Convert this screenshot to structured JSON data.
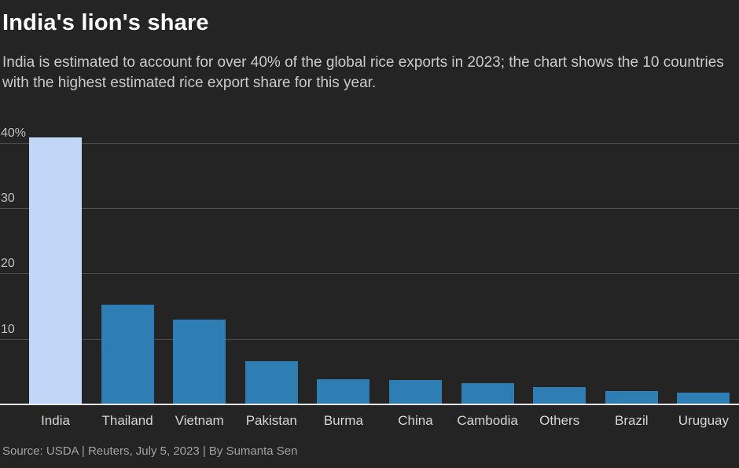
{
  "header": {
    "title": "India's lion's share",
    "subtitle": "India is estimated to account for over 40% of the global rice exports in 2023; the chart shows the 10 countries\nwith the highest estimated rice export share for this year."
  },
  "footer": {
    "source": "Source: USDA | Reuters, July 5, 2023 | By Sumanta Sen"
  },
  "colors": {
    "background": "#242424",
    "bar": "#2f7eb3",
    "bar_highlight": "#c2d6f7",
    "gridline": "#4e4e4e",
    "baseline": "#ededed",
    "title_text": "#ffffff",
    "subtitle_text": "#cbcbcb",
    "tick_text": "#c2c2c2",
    "x_label_text": "#d6d6d6",
    "source_text": "#a3a3a3"
  },
  "chart_data": {
    "type": "bar",
    "title": "India's lion's share",
    "categories": [
      "India",
      "Thailand",
      "Vietnam",
      "Pakistan",
      "Burma",
      "China",
      "Cambodia",
      "Others",
      "Brazil",
      "Uruguay"
    ],
    "values": [
      40.8,
      15.3,
      13.0,
      6.6,
      3.8,
      3.7,
      3.3,
      2.7,
      2.1,
      1.8
    ],
    "unit": "%",
    "highlight_category": "India",
    "xlabel": "",
    "ylabel": "",
    "ylim": [
      0,
      41
    ],
    "y_ticks": [
      {
        "value": 10,
        "label": "10"
      },
      {
        "value": 20,
        "label": "20"
      },
      {
        "value": 30,
        "label": "30"
      },
      {
        "value": 40,
        "label": "40%"
      }
    ],
    "grid": "horizontal",
    "legend": "none"
  }
}
